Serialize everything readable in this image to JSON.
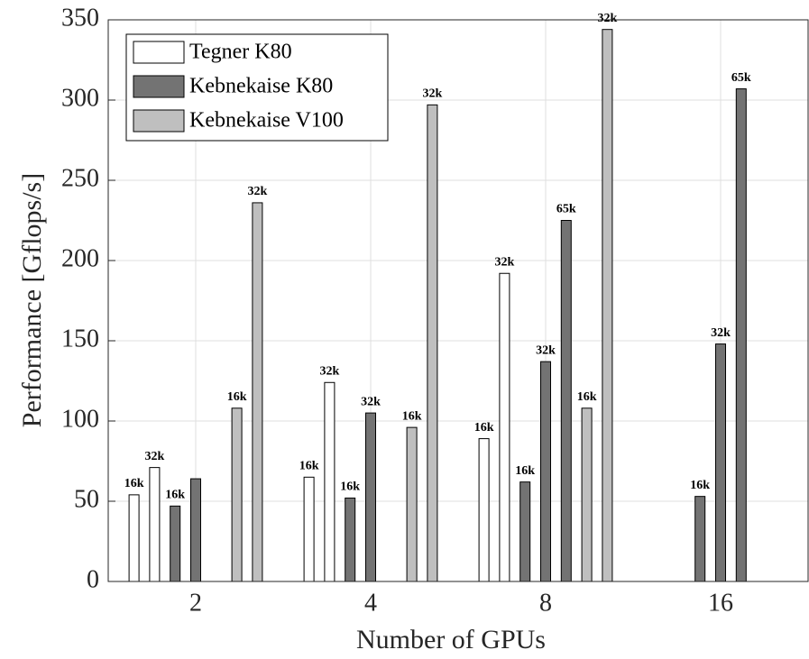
{
  "chart_data": {
    "type": "bar",
    "xlabel": "Number of GPUs",
    "ylabel": "Performance [Gflops/s]",
    "categories": [
      "2",
      "4",
      "8",
      "16"
    ],
    "ylim": [
      0,
      350
    ],
    "yticks": [
      0,
      50,
      100,
      150,
      200,
      250,
      300,
      350
    ],
    "grid": true,
    "legend": "upper left",
    "series": [
      {
        "name": "Tegner K80",
        "color": "#ffffff",
        "values": [
          [
            54,
            71
          ],
          [
            65,
            124
          ],
          [
            89,
            192
          ],
          [
            0,
            0
          ]
        ],
        "value_labels": [
          [
            "16k",
            "32k"
          ],
          [
            "16k",
            "32k"
          ],
          [
            "16k",
            "32k"
          ],
          [
            null,
            null
          ]
        ]
      },
      {
        "name": "Kebnekaise K80",
        "color": "#737373",
        "values": [
          [
            47,
            64,
            0
          ],
          [
            52,
            105,
            0
          ],
          [
            62,
            137,
            225
          ],
          [
            53,
            148,
            307
          ]
        ],
        "value_labels": [
          [
            "16k",
            null,
            null
          ],
          [
            "16k",
            "32k",
            null
          ],
          [
            "16k",
            "32k",
            "65k"
          ],
          [
            "16k",
            "32k",
            "65k"
          ]
        ]
      },
      {
        "name": "Kebnekaise V100",
        "color": "#bfbfbf",
        "values": [
          [
            108,
            236
          ],
          [
            96,
            297
          ],
          [
            108,
            344
          ],
          [
            0,
            0
          ]
        ],
        "value_labels": [
          [
            "16k",
            "32k"
          ],
          [
            "16k",
            "32k"
          ],
          [
            "16k",
            "32k"
          ],
          [
            null,
            null
          ]
        ]
      }
    ]
  }
}
